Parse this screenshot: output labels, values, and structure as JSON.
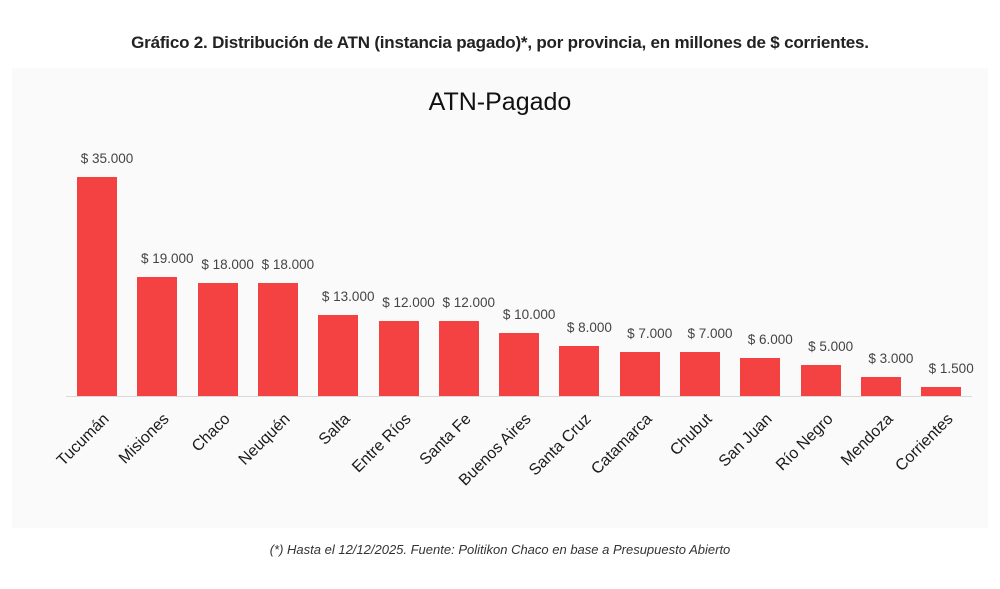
{
  "heading": "Gráfico 2. Distribución de ATN (instancia pagado)*, por provincia, en millones de $ corrientes.",
  "footnote": "(*) Hasta el 12/12/2025. Fuente: Politikon Chaco en base a Presupuesto Abierto",
  "colors": {
    "bar": "#f44242",
    "panel": "#fafafa",
    "axis": "#d9d9d9"
  },
  "chart_data": {
    "type": "bar",
    "title": "ATN-Pagado",
    "xlabel": "",
    "ylabel": "",
    "categories": [
      "Tucumán",
      "Misiones",
      "Chaco",
      "Neuquén",
      "Salta",
      "Entre Ríos",
      "Santa Fe",
      "Buenos Aires",
      "Santa Cruz",
      "Catamarca",
      "Chubut",
      "San Juan",
      "Río Negro",
      "Mendoza",
      "Corrientes"
    ],
    "values": [
      35000,
      19000,
      18000,
      18000,
      13000,
      12000,
      12000,
      10000,
      8000,
      7000,
      7000,
      6000,
      5000,
      3000,
      1500
    ],
    "value_labels": [
      "$ 35.000",
      "$ 19.000",
      "$ 18.000",
      "$ 18.000",
      "$ 13.000",
      "$ 12.000",
      "$ 12.000",
      "$ 10.000",
      "$ 8.000",
      "$ 7.000",
      "$ 7.000",
      "$ 6.000",
      "$ 5.000",
      "$ 3.000",
      "$ 1.500"
    ],
    "ylim": [
      0,
      35000
    ],
    "grid": false,
    "legend": "none",
    "units": "millones de $ corrientes"
  }
}
